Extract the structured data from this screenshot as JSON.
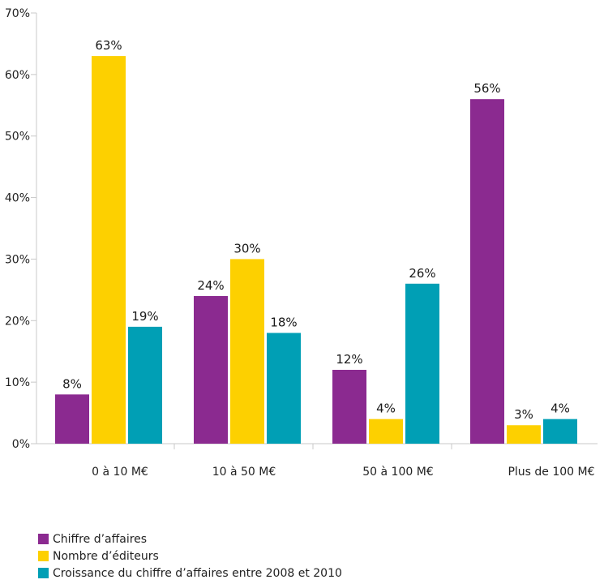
{
  "chart_data": {
    "type": "bar",
    "title": "",
    "xlabel": "",
    "ylabel": "",
    "ylim": [
      0,
      70
    ],
    "yticks": [
      "0%",
      "10%",
      "20%",
      "30%",
      "40%",
      "50%",
      "60%",
      "70%"
    ],
    "categories": [
      "0 à 10 M€",
      "10 à 50 M€",
      "50 à 100 M€",
      "Plus de 100 M€"
    ],
    "series": [
      {
        "name": "Chiffre d’affaires",
        "color": "#8b2a90",
        "values": [
          8,
          24,
          12,
          56
        ],
        "labels": [
          "8%",
          "24%",
          "12%",
          "56%"
        ]
      },
      {
        "name": "Nombre d’éditeurs",
        "color": "#fdd000",
        "values": [
          63,
          30,
          4,
          3
        ],
        "labels": [
          "63%",
          "30%",
          "4%",
          "3%"
        ]
      },
      {
        "name": "Croissance du chiffre d’affaires entre 2008 et 2010",
        "color": "#009fb5",
        "values": [
          19,
          18,
          26,
          4
        ],
        "labels": [
          "19%",
          "18%",
          "26%",
          "4%"
        ]
      }
    ],
    "grid": false,
    "legend_position": "bottom-left"
  }
}
